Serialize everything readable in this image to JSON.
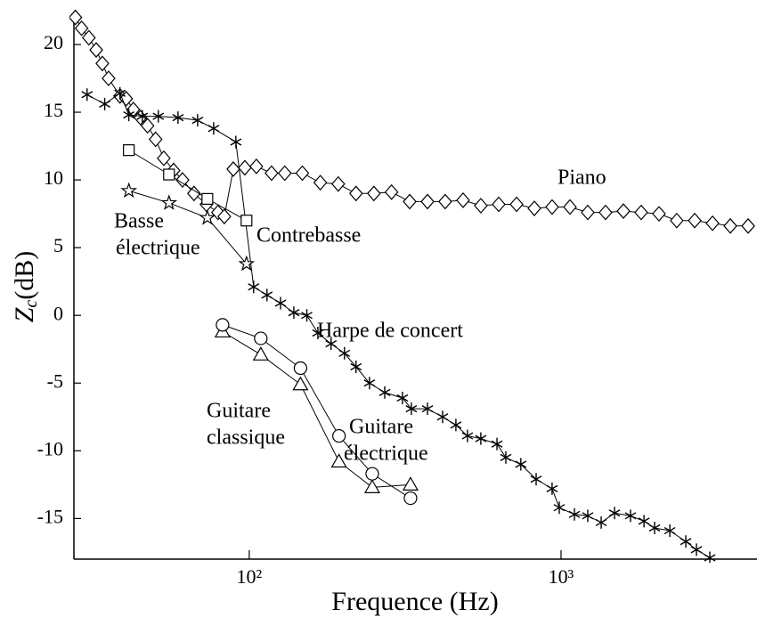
{
  "chart_data": {
    "type": "line",
    "log_x": true,
    "grid": false,
    "xlabel": "Frequence (Hz)",
    "ylabel": {
      "main": "Z",
      "sub": "c",
      "unit": "(dB)"
    },
    "xlim": [
      27.4,
      4250
    ],
    "ylim": [
      -18,
      22.3
    ],
    "xticks": [
      {
        "value": 100,
        "label": "10²"
      },
      {
        "value": 1000,
        "label": "10³"
      }
    ],
    "yticks": [
      20,
      15,
      10,
      5,
      0,
      -5,
      -10,
      -15
    ],
    "annotations": [
      {
        "lines": [
          "Piano"
        ]
      },
      {
        "lines": [
          "Contrebasse"
        ]
      },
      {
        "lines": [
          "Basse",
          "électrique"
        ]
      },
      {
        "lines": [
          "Harpe de concert"
        ]
      },
      {
        "lines": [
          "Guitare",
          "classique"
        ]
      },
      {
        "lines": [
          "Guitare",
          "électrique"
        ]
      }
    ],
    "series": [
      {
        "name": "Piano",
        "color": "#000000",
        "marker": "diamond",
        "x": [
          27.7,
          29.0,
          30.6,
          32.3,
          33.8,
          35.4,
          38.5,
          40.3,
          42.5,
          44.8,
          47.2,
          50.1,
          53.2,
          57.2,
          61.1,
          66.5,
          72.9,
          79.4,
          83.2,
          88.9,
          96.8,
          105.4,
          117.9,
          130,
          148,
          169,
          193,
          220,
          251,
          286,
          327,
          373,
          425,
          485,
          553,
          631,
          720,
          821,
          936,
          1068,
          1218,
          1389,
          1585,
          1807,
          2061,
          2350,
          2683,
          3060,
          3490,
          3981
        ],
        "values": [
          22.0,
          21.2,
          20.5,
          19.6,
          18.6,
          17.5,
          16.2,
          16.0,
          15.2,
          14.6,
          14.0,
          13.0,
          11.6,
          10.7,
          10.0,
          9.0,
          8.2,
          7.6,
          7.3,
          10.8,
          10.9,
          11.0,
          10.5,
          10.5,
          10.5,
          9.8,
          9.7,
          9.0,
          9.0,
          9.1,
          8.4,
          8.4,
          8.4,
          8.5,
          8.1,
          8.2,
          8.2,
          7.9,
          8.0,
          8.0,
          7.6,
          7.6,
          7.7,
          7.6,
          7.5,
          7.0,
          7.0,
          6.8,
          6.6,
          6.6
        ]
      },
      {
        "name": "Harpe de concert",
        "color": "#000000",
        "marker": "asterisk",
        "x": [
          30.2,
          34.4,
          38.5,
          41.1,
          45.4,
          51.1,
          59.1,
          68.3,
          76.9,
          90.6,
          103.3,
          114,
          126,
          139,
          153,
          166,
          183,
          202,
          220,
          243,
          272,
          310,
          331,
          373,
          417,
          460,
          501,
          553,
          623,
          665,
          743,
          832,
          936,
          987,
          1104,
          1218,
          1345,
          1484,
          1670,
          1845,
          1995,
          2233,
          2512,
          2718,
          3000
        ],
        "values": [
          16.3,
          15.6,
          16.4,
          14.8,
          14.7,
          14.7,
          14.6,
          14.4,
          13.8,
          12.8,
          2.1,
          1.5,
          0.9,
          0.2,
          0.0,
          -1.3,
          -2.1,
          -2.8,
          -3.8,
          -5.0,
          -5.7,
          -6.1,
          -6.9,
          -6.9,
          -7.5,
          -8.1,
          -8.9,
          -9.1,
          -9.5,
          -10.5,
          -11.0,
          -12.1,
          -12.8,
          -14.2,
          -14.7,
          -14.8,
          -15.3,
          -14.6,
          -14.8,
          -15.2,
          -15.7,
          -15.9,
          -16.7,
          -17.3,
          -17.9
        ]
      },
      {
        "name": "Basse électrique",
        "color": "#000000",
        "marker": "star",
        "x": [
          41.1,
          55.3,
          73.4,
          98
        ],
        "values": [
          9.2,
          8.3,
          7.2,
          3.8
        ]
      },
      {
        "name": "Contrebasse",
        "color": "#000000",
        "marker": "square",
        "x": [
          41.1,
          55.3,
          73.4,
          98
        ],
        "values": [
          12.2,
          10.4,
          8.6,
          7.0
        ]
      },
      {
        "name": "Guitare classique",
        "color": "#000000",
        "marker": "triangle",
        "x": [
          82.1,
          108.9,
          146,
          194,
          248,
          329
        ],
        "values": [
          -1.2,
          -2.9,
          -5.1,
          -10.8,
          -12.7,
          -12.5
        ]
      },
      {
        "name": "Guitare électrique",
        "color": "#000000",
        "marker": "circle",
        "x": [
          82.1,
          108.9,
          146,
          194,
          248,
          329
        ],
        "values": [
          -0.7,
          -1.7,
          -3.9,
          -8.9,
          -11.7,
          -13.5
        ]
      }
    ]
  }
}
